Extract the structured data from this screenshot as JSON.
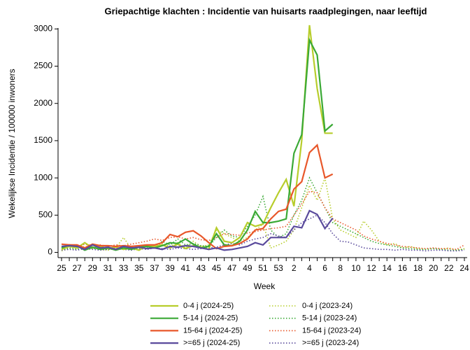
{
  "chart_data": {
    "type": "line",
    "title": "Griepachtige klachten : Incidentie van huisarts raadplegingen, naar leeftijd",
    "y_label": "Wekelijkse Incidentie / 100000 inwoners",
    "x_label": "Week",
    "categories": [
      "25",
      null,
      "27",
      null,
      "29",
      null,
      "31",
      null,
      "33",
      null,
      "35",
      null,
      "37",
      null,
      "39",
      null,
      "41",
      null,
      "43",
      null,
      "45",
      null,
      "47",
      null,
      "49",
      null,
      "51",
      null,
      "53",
      null,
      "2",
      null,
      "4",
      null,
      "6",
      null,
      "8",
      null,
      "10",
      null,
      "12",
      null,
      "14",
      null,
      "16",
      null,
      "18",
      null,
      "20",
      null,
      "22",
      null,
      "24"
    ],
    "ylim": [
      -70,
      3050
    ],
    "yticks": [
      0,
      500,
      1000,
      1500,
      2000,
      2500,
      3000
    ],
    "series": [
      {
        "name": "0-4 j (2024-25)",
        "color": "#b7cd2b",
        "style": "solid",
        "values": [
          40,
          80,
          60,
          130,
          60,
          80,
          50,
          70,
          40,
          60,
          30,
          90,
          80,
          100,
          60,
          110,
          50,
          90,
          70,
          40,
          330,
          150,
          130,
          200,
          400,
          350,
          380,
          600,
          800,
          980,
          620,
          1500,
          3050,
          2200,
          1600,
          1600,
          null,
          null,
          null,
          null,
          null,
          null,
          null,
          null,
          null,
          null,
          null,
          null,
          null,
          null,
          null,
          null,
          null
        ]
      },
      {
        "name": "0-4 j (2023-24)",
        "color": "#b7cd2b",
        "style": "dotted",
        "values": [
          20,
          50,
          40,
          80,
          60,
          40,
          30,
          60,
          200,
          50,
          40,
          80,
          60,
          120,
          80,
          130,
          60,
          150,
          80,
          100,
          300,
          250,
          200,
          150,
          200,
          300,
          380,
          60,
          100,
          150,
          300,
          600,
          900,
          700,
          1000,
          450,
          300,
          250,
          200,
          420,
          300,
          150,
          100,
          120,
          60,
          80,
          50,
          40,
          50,
          40,
          60,
          30,
          50
        ]
      },
      {
        "name": "5-14 j (2024-25)",
        "color": "#3aa935",
        "style": "solid",
        "values": [
          60,
          100,
          90,
          30,
          70,
          40,
          60,
          30,
          60,
          40,
          70,
          80,
          60,
          90,
          130,
          120,
          180,
          110,
          60,
          80,
          250,
          100,
          90,
          150,
          300,
          550,
          400,
          400,
          420,
          450,
          1330,
          1580,
          2850,
          2650,
          1630,
          1720,
          null,
          null,
          null,
          null,
          null,
          null,
          null,
          null,
          null,
          null,
          null,
          null,
          null,
          null,
          null,
          null,
          null
        ]
      },
      {
        "name": "5-14 j (2023-24)",
        "color": "#3aa935",
        "style": "dotted",
        "values": [
          30,
          60,
          40,
          70,
          50,
          50,
          40,
          60,
          40,
          50,
          80,
          70,
          60,
          150,
          100,
          180,
          100,
          120,
          90,
          80,
          200,
          300,
          220,
          200,
          350,
          500,
          750,
          300,
          200,
          250,
          500,
          700,
          1000,
          800,
          600,
          400,
          350,
          300,
          250,
          200,
          150,
          120,
          100,
          80,
          60,
          50,
          40,
          40,
          50,
          40,
          30,
          30,
          40
        ]
      },
      {
        "name": "15-64 j (2024-25)",
        "color": "#e8572a",
        "style": "solid",
        "values": [
          110,
          100,
          100,
          60,
          110,
          90,
          90,
          80,
          90,
          80,
          90,
          100,
          100,
          130,
          240,
          210,
          270,
          290,
          220,
          130,
          50,
          80,
          90,
          120,
          180,
          300,
          320,
          450,
          550,
          580,
          850,
          950,
          1340,
          1440,
          1000,
          1050,
          null,
          null,
          null,
          null,
          null,
          null,
          null,
          null,
          null,
          null,
          null,
          null,
          null,
          null,
          null,
          null,
          null
        ]
      },
      {
        "name": "15-64 j (2023-24)",
        "color": "#e8572a",
        "style": "dotted",
        "values": [
          80,
          90,
          70,
          110,
          90,
          100,
          80,
          100,
          90,
          110,
          130,
          150,
          180,
          160,
          200,
          210,
          180,
          200,
          170,
          160,
          200,
          250,
          240,
          230,
          260,
          280,
          300,
          320,
          330,
          350,
          500,
          650,
          820,
          800,
          600,
          450,
          400,
          350,
          300,
          220,
          180,
          150,
          120,
          100,
          80,
          70,
          60,
          50,
          60,
          50,
          50,
          40,
          100
        ]
      },
      {
        "name": ">=65 j (2024-25)",
        "color": "#5a4a9c",
        "style": "solid",
        "values": [
          80,
          90,
          80,
          40,
          100,
          60,
          70,
          40,
          80,
          60,
          70,
          50,
          60,
          40,
          80,
          70,
          90,
          80,
          60,
          40,
          60,
          30,
          40,
          60,
          80,
          130,
          100,
          200,
          200,
          200,
          350,
          330,
          560,
          510,
          320,
          460,
          null,
          null,
          null,
          null,
          null,
          null,
          null,
          null,
          null,
          null,
          null,
          null,
          null,
          null,
          null,
          null,
          null
        ]
      },
      {
        "name": ">=65 j (2023-24)",
        "color": "#5a4a9c",
        "style": "dotted",
        "values": [
          30,
          40,
          30,
          50,
          40,
          30,
          40,
          50,
          40,
          30,
          50,
          40,
          60,
          50,
          40,
          60,
          50,
          40,
          50,
          60,
          70,
          100,
          120,
          100,
          150,
          180,
          200,
          250,
          220,
          200,
          300,
          400,
          450,
          500,
          400,
          250,
          150,
          140,
          100,
          60,
          50,
          40,
          40,
          30,
          40,
          30,
          30,
          20,
          30,
          30,
          20,
          20,
          30
        ]
      }
    ]
  }
}
